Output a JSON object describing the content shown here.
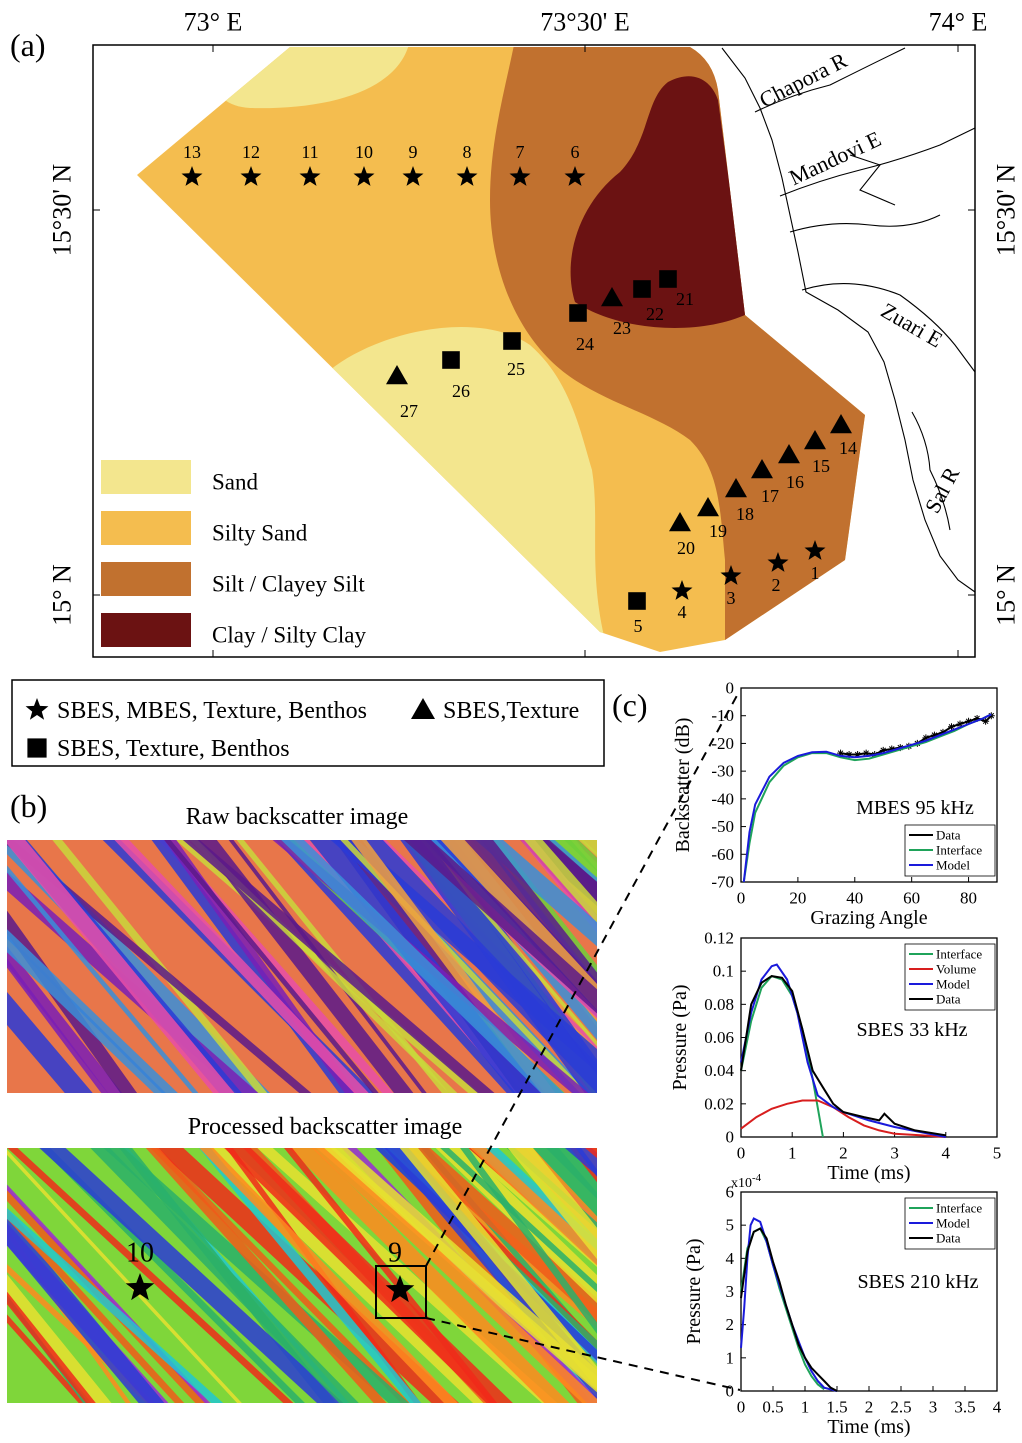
{
  "figure": {
    "panel_labels": [
      "(a)",
      "(b)",
      "(c)"
    ]
  },
  "map": {
    "lon_labels": [
      "73° E",
      "73°30' E",
      "74° E"
    ],
    "lat_labels": [
      "15°30' N",
      "15° N"
    ],
    "rivers": [
      "Chapora R",
      "Mandovi E",
      "Zuari E",
      "Sal R"
    ],
    "classes": [
      {
        "name": "Sand",
        "color": "#f3e68e"
      },
      {
        "name": "Silty Sand",
        "color": "#f4bd4f"
      },
      {
        "name": "Silt / Clayey Silt",
        "color": "#c1712f"
      },
      {
        "name": "Clay / Silty Clay",
        "color": "#6b1212"
      }
    ],
    "stations": [
      {
        "label": "1",
        "type": "star"
      },
      {
        "label": "2",
        "type": "star"
      },
      {
        "label": "3",
        "type": "star"
      },
      {
        "label": "4",
        "type": "star"
      },
      {
        "label": "5",
        "type": "square"
      },
      {
        "label": "6",
        "type": "star"
      },
      {
        "label": "7",
        "type": "star"
      },
      {
        "label": "8",
        "type": "star"
      },
      {
        "label": "9",
        "type": "star"
      },
      {
        "label": "10",
        "type": "star"
      },
      {
        "label": "11",
        "type": "star"
      },
      {
        "label": "12",
        "type": "star"
      },
      {
        "label": "13",
        "type": "star"
      },
      {
        "label": "14",
        "type": "triangle"
      },
      {
        "label": "15",
        "type": "triangle"
      },
      {
        "label": "16",
        "type": "triangle"
      },
      {
        "label": "17",
        "type": "triangle"
      },
      {
        "label": "18",
        "type": "triangle"
      },
      {
        "label": "19",
        "type": "triangle"
      },
      {
        "label": "20",
        "type": "triangle"
      },
      {
        "label": "21",
        "type": "square"
      },
      {
        "label": "22",
        "type": "square"
      },
      {
        "label": "23",
        "type": "triangle"
      },
      {
        "label": "24",
        "type": "square"
      },
      {
        "label": "25",
        "type": "square"
      },
      {
        "label": "26",
        "type": "square"
      },
      {
        "label": "27",
        "type": "triangle"
      }
    ],
    "symbol_legend": [
      {
        "type": "star",
        "label": "SBES, MBES, Texture, Benthos"
      },
      {
        "type": "triangle",
        "label": "SBES,Texture"
      },
      {
        "type": "square",
        "label": "SBES, Texture, Benthos"
      }
    ]
  },
  "panel_b": {
    "raw_title": "Raw backscatter image",
    "processed_title": "Processed backscatter image",
    "stations": [
      "10",
      "9"
    ]
  },
  "chart_data": [
    {
      "type": "line",
      "annotation": "MBES 95 kHz",
      "xlabel": "Grazing Angle",
      "ylabel": "Backscatter (dB)",
      "xlim": [
        0,
        90
      ],
      "xticks": [
        0,
        20,
        40,
        60,
        80
      ],
      "ylim": [
        -70,
        0
      ],
      "yticks": [
        0,
        -10,
        -20,
        -30,
        -40,
        -50,
        -60,
        -70
      ],
      "legend": "lower right",
      "series": [
        {
          "name": "Data",
          "color": "#000000",
          "marker": "asterisk",
          "x": [
            35,
            38,
            41,
            44,
            47,
            50,
            53,
            56,
            59,
            62,
            65,
            68,
            71,
            74,
            77,
            80,
            83,
            86,
            88
          ],
          "values": [
            -23.5,
            -24,
            -24,
            -23.5,
            -24,
            -22.5,
            -22,
            -21.5,
            -21,
            -20,
            -18,
            -17,
            -16,
            -14,
            -13,
            -12,
            -11,
            -12,
            -10
          ]
        },
        {
          "name": "Interface",
          "color": "#1fa35a",
          "x": [
            1,
            3,
            5,
            10,
            15,
            20,
            25,
            30,
            35,
            40,
            45,
            50,
            55,
            60,
            65,
            70,
            75,
            80,
            85,
            88
          ],
          "values": [
            -70,
            -56,
            -45,
            -34,
            -28,
            -25,
            -23.5,
            -23.5,
            -25,
            -26,
            -25.5,
            -24,
            -22.5,
            -21,
            -19.5,
            -17.5,
            -15.5,
            -13,
            -11,
            -9.5
          ]
        },
        {
          "name": "Model",
          "color": "#1a1adb",
          "x": [
            1,
            3,
            5,
            10,
            15,
            20,
            25,
            30,
            35,
            40,
            45,
            50,
            55,
            60,
            65,
            70,
            75,
            80,
            85,
            88
          ],
          "values": [
            -70,
            -52,
            -42,
            -32,
            -27,
            -24.5,
            -23.2,
            -23,
            -24.5,
            -25,
            -24.5,
            -23.5,
            -22,
            -20.5,
            -19,
            -17,
            -15,
            -13,
            -11,
            -9.5
          ]
        }
      ]
    },
    {
      "type": "line",
      "annotation": "SBES 33 kHz",
      "xlabel": "Time (ms)",
      "ylabel": "Pressure (Pa)",
      "xlim": [
        0,
        5
      ],
      "xticks": [
        0,
        1,
        2,
        3,
        4,
        5
      ],
      "ylim": [
        0,
        0.12
      ],
      "yticks": [
        0,
        0.02,
        0.04,
        0.06,
        0.08,
        0.1,
        0.12
      ],
      "legend": "upper right",
      "series": [
        {
          "name": "Interface",
          "color": "#1fa35a",
          "x": [
            0,
            0.2,
            0.4,
            0.6,
            0.8,
            1.0,
            1.2,
            1.4,
            1.6
          ],
          "values": [
            0.04,
            0.07,
            0.09,
            0.097,
            0.095,
            0.085,
            0.065,
            0.035,
            0
          ]
        },
        {
          "name": "Volume",
          "color": "#d81e1e",
          "x": [
            0,
            0.3,
            0.6,
            0.9,
            1.2,
            1.5,
            1.8,
            2.1,
            2.4,
            2.7,
            3,
            3.5,
            4
          ],
          "values": [
            0.005,
            0.012,
            0.017,
            0.02,
            0.022,
            0.022,
            0.018,
            0.012,
            0.007,
            0.004,
            0.002,
            0.001,
            0
          ]
        },
        {
          "name": "Model",
          "color": "#1a1adb",
          "x": [
            0,
            0.2,
            0.4,
            0.6,
            0.7,
            0.9,
            1.1,
            1.3,
            1.5,
            1.8,
            2,
            2.5,
            3,
            3.5,
            4
          ],
          "values": [
            0.045,
            0.075,
            0.095,
            0.103,
            0.104,
            0.095,
            0.075,
            0.045,
            0.025,
            0.018,
            0.015,
            0.01,
            0.006,
            0.003,
            0
          ]
        },
        {
          "name": "Data",
          "color": "#000000",
          "x": [
            0,
            0.2,
            0.4,
            0.6,
            0.8,
            1.0,
            1.2,
            1.4,
            1.6,
            1.8,
            2.0,
            2.4,
            2.7,
            2.8,
            3,
            3.4,
            4
          ],
          "values": [
            0.04,
            0.08,
            0.093,
            0.097,
            0.096,
            0.088,
            0.065,
            0.04,
            0.03,
            0.02,
            0.015,
            0.012,
            0.01,
            0.014,
            0.008,
            0.004,
            0.001
          ]
        }
      ]
    },
    {
      "type": "line",
      "annotation": "SBES 210 kHz",
      "xlabel": "Time (ms)",
      "ylabel": "Pressure (Pa)",
      "y_multiplier": {
        "base": "x10",
        "exponent": "-4"
      },
      "xlim": [
        0,
        4
      ],
      "xticks": [
        0,
        0.5,
        1,
        1.5,
        2,
        2.5,
        3,
        3.5,
        4
      ],
      "ylim": [
        0,
        6
      ],
      "yticks": [
        0,
        1,
        2,
        3,
        4,
        5,
        6
      ],
      "legend": "upper right",
      "series": [
        {
          "name": "Interface",
          "color": "#1fa35a",
          "x": [
            0,
            0.1,
            0.2,
            0.3,
            0.4,
            0.5,
            0.6,
            0.7,
            0.8,
            0.9,
            1.0,
            1.1,
            1.2,
            1.3
          ],
          "values": [
            3,
            4.3,
            4.8,
            4.9,
            4.5,
            3.8,
            3.1,
            2.5,
            1.9,
            1.3,
            0.8,
            0.45,
            0.2,
            0.05
          ]
        },
        {
          "name": "Model",
          "color": "#1a1adb",
          "x": [
            0,
            0.05,
            0.1,
            0.15,
            0.2,
            0.3,
            0.4,
            0.5,
            0.6,
            0.7,
            0.8,
            0.9,
            1.0,
            1.1,
            1.2,
            1.3,
            1.5
          ],
          "values": [
            1.3,
            2.5,
            4,
            5,
            5.2,
            5.1,
            4.5,
            3.8,
            3.2,
            2.6,
            2.0,
            1.5,
            1.0,
            0.6,
            0.3,
            0.1,
            0
          ]
        },
        {
          "name": "Data",
          "color": "#000000",
          "x": [
            0,
            0.1,
            0.2,
            0.3,
            0.4,
            0.5,
            0.6,
            0.7,
            0.8,
            0.9,
            1.0,
            1.1,
            1.2,
            1.3,
            1.4,
            1.5
          ],
          "values": [
            2.8,
            4.2,
            4.8,
            4.9,
            4.6,
            3.9,
            3.3,
            2.6,
            2.0,
            1.4,
            1.0,
            0.7,
            0.5,
            0.3,
            0.1,
            0
          ]
        }
      ]
    }
  ]
}
